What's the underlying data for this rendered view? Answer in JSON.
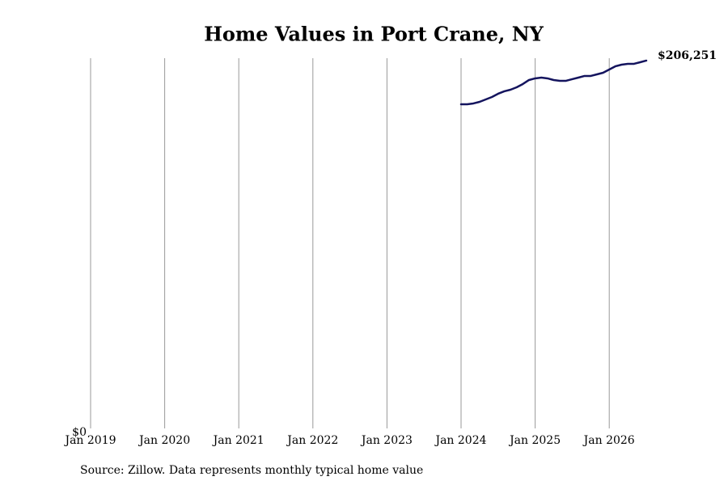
{
  "chart_data": {
    "type": "line",
    "title": "Home Values in Port Crane, NY",
    "source": "Source: Zillow. Data represents monthly typical home value",
    "x": [
      "2024-01",
      "2024-02",
      "2024-03",
      "2024-04",
      "2024-05",
      "2024-06",
      "2024-07",
      "2024-08",
      "2024-09",
      "2024-10",
      "2024-11",
      "2024-12",
      "2025-01",
      "2025-02",
      "2025-03",
      "2025-04",
      "2025-05",
      "2025-06",
      "2025-07",
      "2025-08",
      "2025-09",
      "2025-10",
      "2025-11",
      "2025-12",
      "2026-01",
      "2026-02",
      "2026-03",
      "2026-04",
      "2026-05",
      "2026-06",
      "2026-07"
    ],
    "series": [
      {
        "name": "Home value",
        "color": "#14145e",
        "values": [
          181770,
          181770,
          182230,
          183130,
          184490,
          185850,
          187670,
          189030,
          189930,
          191290,
          193110,
          195370,
          196280,
          196730,
          196280,
          195370,
          194920,
          194920,
          195830,
          196730,
          197640,
          197640,
          198540,
          199450,
          201260,
          203080,
          203980,
          204440,
          204440,
          205340,
          206251
        ],
        "value_labels": [
          null,
          null,
          null,
          null,
          null,
          null,
          null,
          null,
          null,
          null,
          null,
          null,
          null,
          null,
          null,
          null,
          null,
          null,
          null,
          null,
          null,
          null,
          null,
          null,
          null,
          null,
          null,
          null,
          null,
          null,
          "$206,251"
        ]
      }
    ],
    "xlim": [
      "2019-01",
      "2026-07"
    ],
    "xticks": [
      {
        "value": "2019-01",
        "label": "Jan 2019"
      },
      {
        "value": "2020-01",
        "label": "Jan 2020"
      },
      {
        "value": "2021-01",
        "label": "Jan 2021"
      },
      {
        "value": "2022-01",
        "label": "Jan 2022"
      },
      {
        "value": "2023-01",
        "label": "Jan 2023"
      },
      {
        "value": "2024-01",
        "label": "Jan 2024"
      },
      {
        "value": "2025-01",
        "label": "Jan 2025"
      },
      {
        "value": "2026-01",
        "label": "Jan 2026"
      }
    ],
    "ylim": [
      0,
      207600
    ],
    "yticks": [
      {
        "value": 0,
        "label": "$0"
      }
    ],
    "grid": true
  }
}
